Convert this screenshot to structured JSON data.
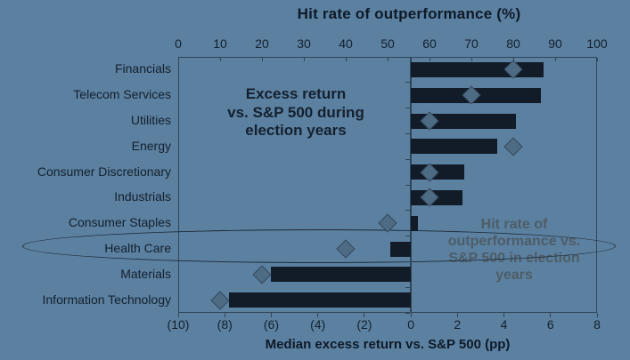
{
  "chart_data": {
    "type": "bar",
    "orientation": "horizontal bars with diamond markers on secondary axis",
    "categories": [
      "Financials",
      "Telecom Services",
      "Utilities",
      "Energy",
      "Consumer Discretionary",
      "Industrials",
      "Consumer Staples",
      "Health Care",
      "Materials",
      "Information Technology"
    ],
    "series": [
      {
        "name": "Excess return vs. S&P 500 during election years",
        "marker": "bar",
        "axis": "bottom",
        "values": [
          5.7,
          5.6,
          4.5,
          3.7,
          2.3,
          2.2,
          0.3,
          -0.9,
          -6.0,
          -7.8
        ]
      },
      {
        "name": "Hit rate of outperformance vs. S&P 500 in election years",
        "marker": "diamond",
        "axis": "top",
        "values": [
          80,
          70,
          60,
          80,
          60,
          60,
          50,
          40,
          20,
          10
        ]
      }
    ],
    "top_axis": {
      "title": "Hit rate of outperformance (%)",
      "min": 0,
      "max": 100,
      "tick_labels": [
        "0",
        "10",
        "20",
        "30",
        "40",
        "50",
        "60",
        "70",
        "80",
        "90",
        "100"
      ]
    },
    "bottom_axis": {
      "title": "Median excess return vs. S&P 500 (pp)",
      "min": -10,
      "max": 8,
      "tick_labels": [
        "(10)",
        "(8)",
        "(6)",
        "(4)",
        "(2)",
        "0",
        "2",
        "4",
        "6",
        "8"
      ]
    },
    "annotations": {
      "bars_note": "Excess return\nvs. S&P 500 during\nelection years",
      "diamonds_note": "Hit rate of\noutperformance vs.\nS&P 500 in election\nyears",
      "circled_category": "Health Care"
    },
    "grid": false,
    "legend_position": "none"
  },
  "colors": {
    "background": "#5B80A0",
    "bar": "#121C28",
    "diamond": "#4E6B84",
    "axis_line": "#31465A",
    "text_dark": "#14202E",
    "title_dark": "#0E1A28",
    "annotation_gray": "#4E5D68",
    "ellipse": "#1D2A38"
  }
}
